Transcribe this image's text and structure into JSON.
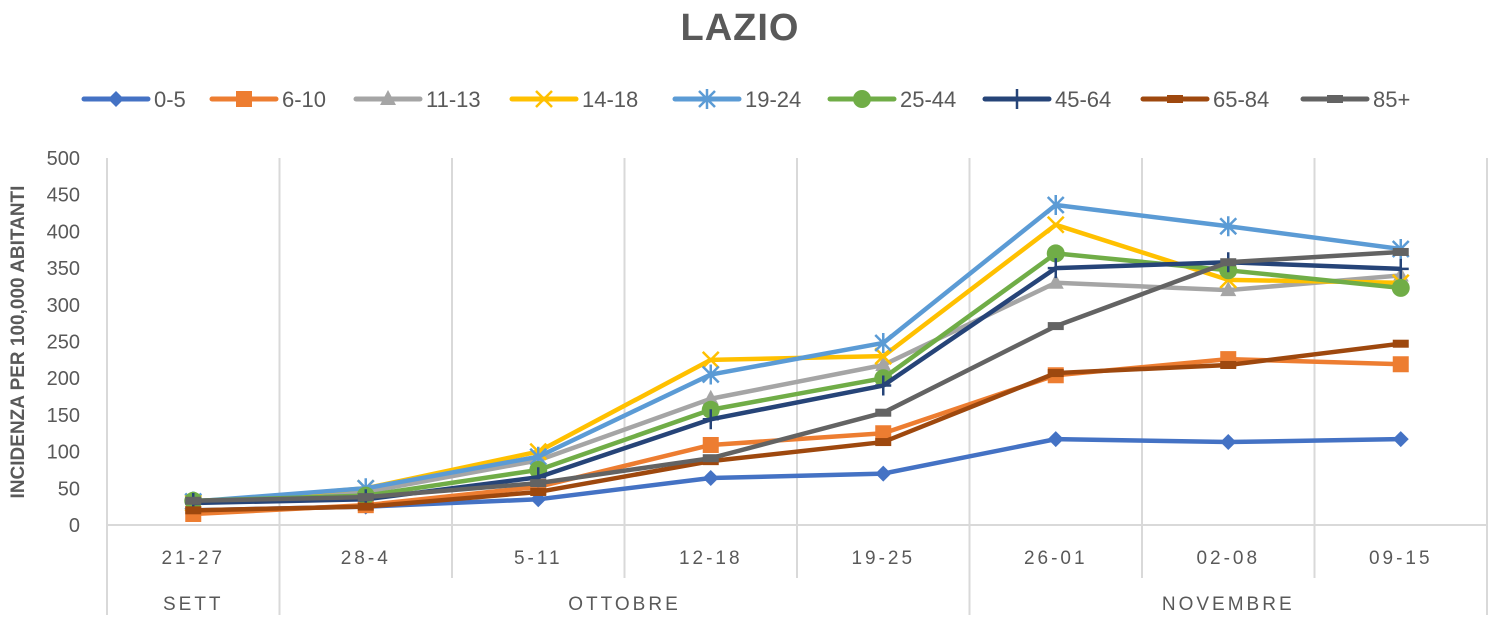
{
  "chart_data": {
    "type": "line",
    "title": "LAZIO",
    "xlabel": "",
    "ylabel": "INCIDENZA PER 100,000 ABITANTI",
    "ylim": [
      0,
      500
    ],
    "yticks": [
      "0",
      "50",
      "100",
      "150",
      "200",
      "250",
      "300",
      "350",
      "400",
      "450",
      "500"
    ],
    "grid": "vertical",
    "legend_position": "top",
    "categories": [
      "21-27",
      "28-4",
      "5-11",
      "12-18",
      "19-25",
      "26-01",
      "02-08",
      "09-15"
    ],
    "groups": [
      {
        "label": "SETT",
        "span": 1
      },
      {
        "label": "OTTOBRE",
        "span": 4
      },
      {
        "label": "NOVEMBRE",
        "span": 3
      }
    ],
    "series": [
      {
        "name": "0-5",
        "color": "#4472C4",
        "marker": "diamond",
        "values": [
          20,
          25,
          35,
          64,
          70,
          117,
          113,
          117
        ]
      },
      {
        "name": "6-10",
        "color": "#ED7D31",
        "marker": "square",
        "values": [
          15,
          27,
          52,
          109,
          125,
          204,
          226,
          219
        ]
      },
      {
        "name": "11-13",
        "color": "#A5A5A5",
        "marker": "triangle",
        "values": [
          30,
          45,
          88,
          172,
          218,
          330,
          320,
          340
        ]
      },
      {
        "name": "14-18",
        "color": "#FFC000",
        "marker": "x",
        "values": [
          30,
          50,
          100,
          225,
          230,
          409,
          334,
          330
        ]
      },
      {
        "name": "19-24",
        "color": "#5B9BD5",
        "marker": "asterisk",
        "values": [
          32,
          50,
          93,
          205,
          248,
          436,
          407,
          376
        ]
      },
      {
        "name": "25-44",
        "color": "#70AD47",
        "marker": "circle",
        "values": [
          33,
          40,
          75,
          157,
          200,
          370,
          347,
          323
        ]
      },
      {
        "name": "45-64",
        "color": "#264478",
        "marker": "plus",
        "values": [
          30,
          35,
          65,
          144,
          190,
          350,
          358,
          349
        ]
      },
      {
        "name": "65-84",
        "color": "#9E480E",
        "marker": "dash",
        "values": [
          20,
          25,
          45,
          87,
          113,
          207,
          218,
          247
        ]
      },
      {
        "name": "85+",
        "color": "#636363",
        "marker": "dash",
        "values": [
          33,
          38,
          57,
          91,
          153,
          271,
          358,
          372
        ]
      }
    ]
  }
}
